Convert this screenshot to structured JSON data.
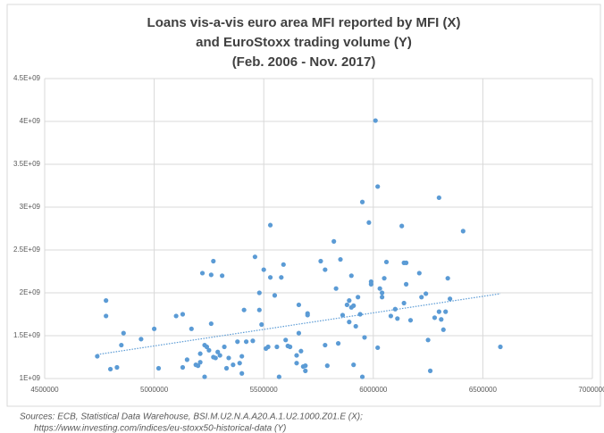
{
  "chart_data": {
    "type": "scatter",
    "title": [
      "Loans vis-a-vis euro area MFI reported by MFI (X)",
      "and EuroStoxx trading volume (Y)",
      "(Feb. 2006 - Nov. 2017)"
    ],
    "notes": [
      "Sources: ECB, Statistical Data Warehouse, BSI.M.U2.N.A.A20.A.1.U2.1000.Z01.E (X);",
      "https://www.investing.com/indices/eu-stoxx50-historical-data (Y)"
    ],
    "color": "#5b9bd5",
    "grid": true,
    "xlim": [
      4500000,
      7000000
    ],
    "xticks": [
      4500000,
      5000000,
      5500000,
      6000000,
      6500000,
      7000000
    ],
    "ylim": [
      1000000000,
      4500000000
    ],
    "yticks": [
      {
        "value": 1000000000,
        "label": "1E+09"
      },
      {
        "value": 1500000000,
        "label": "1.5E+09"
      },
      {
        "value": 2000000000,
        "label": "2E+09"
      },
      {
        "value": 2500000000,
        "label": "2.5E+09"
      },
      {
        "value": 3000000000,
        "label": "3E+09"
      },
      {
        "value": 3500000000,
        "label": "3.5E+09"
      },
      {
        "value": 4000000000,
        "label": "4E+09"
      },
      {
        "value": 4500000000,
        "label": "4.5E+09"
      }
    ],
    "trendline": {
      "x": [
        4740000,
        6580000
      ],
      "values": [
        1280000000,
        1990000000
      ]
    },
    "x": [
      4740000,
      4780000,
      4780000,
      4800000,
      4830000,
      4850000,
      4860000,
      4940000,
      5000000,
      5020000,
      5100000,
      5130000,
      5130000,
      5150000,
      5170000,
      5190000,
      5200000,
      5210000,
      5210000,
      5220000,
      5230000,
      5240000,
      5230000,
      5250000,
      5260000,
      5260000,
      5270000,
      5270000,
      5280000,
      5290000,
      5300000,
      5310000,
      5320000,
      5330000,
      5340000,
      5360000,
      5380000,
      5390000,
      5400000,
      5400000,
      5410000,
      5420000,
      5450000,
      5460000,
      5480000,
      5480000,
      5490000,
      5500000,
      5510000,
      5520000,
      5530000,
      5530000,
      5550000,
      5560000,
      5570000,
      5580000,
      5590000,
      5600000,
      5610000,
      5620000,
      5650000,
      5650000,
      5660000,
      5660000,
      5670000,
      5680000,
      5690000,
      5700000,
      5700000,
      5690000,
      5760000,
      5780000,
      5780000,
      5790000,
      5820000,
      5830000,
      5840000,
      5850000,
      5860000,
      5880000,
      5890000,
      5890000,
      5900000,
      5900000,
      5910000,
      5910000,
      5920000,
      5930000,
      5940000,
      5950000,
      5960000,
      5950000,
      5980000,
      5990000,
      5990000,
      6010000,
      6020000,
      6020000,
      6030000,
      6040000,
      6040000,
      6050000,
      6060000,
      6080000,
      6100000,
      6110000,
      6130000,
      6140000,
      6140000,
      6150000,
      6150000,
      6170000,
      6210000,
      6220000,
      6240000,
      6250000,
      6260000,
      6280000,
      6300000,
      6300000,
      6310000,
      6320000,
      6330000,
      6340000,
      6350000,
      6410000,
      6580000
    ],
    "values": [
      1260000000,
      1910000000,
      1730000000,
      1110000000,
      1130000000,
      1390000000,
      1530000000,
      1460000000,
      1580000000,
      1120000000,
      1730000000,
      1750000000,
      1130000000,
      1220000000,
      1580000000,
      1160000000,
      1150000000,
      1290000000,
      1190000000,
      2230000000,
      1390000000,
      1370000000,
      1020000000,
      1330000000,
      1640000000,
      2210000000,
      2370000000,
      1250000000,
      1240000000,
      1310000000,
      1270000000,
      2200000000,
      1370000000,
      1120000000,
      1240000000,
      1160000000,
      1430000000,
      1180000000,
      1060000000,
      1260000000,
      1800000000,
      1430000000,
      1440000000,
      2420000000,
      2000000000,
      1800000000,
      1630000000,
      2270000000,
      1350000000,
      1370000000,
      2790000000,
      2180000000,
      1970000000,
      1370000000,
      1020000000,
      2180000000,
      2330000000,
      1450000000,
      1380000000,
      1370000000,
      1180000000,
      1270000000,
      1860000000,
      1530000000,
      1320000000,
      1140000000,
      1150000000,
      1760000000,
      1740000000,
      1090000000,
      2370000000,
      2270000000,
      1390000000,
      1150000000,
      2600000000,
      2050000000,
      1410000000,
      2390000000,
      1740000000,
      1860000000,
      1910000000,
      1660000000,
      2200000000,
      1830000000,
      1160000000,
      1850000000,
      1610000000,
      1950000000,
      1750000000,
      3060000000,
      1480000000,
      1020000000,
      2820000000,
      2130000000,
      2100000000,
      4010000000,
      3240000000,
      1360000000,
      2050000000,
      2000000000,
      1950000000,
      2170000000,
      2360000000,
      1730000000,
      1810000000,
      1700000000,
      2780000000,
      2350000000,
      1880000000,
      2350000000,
      2100000000,
      1680000000,
      2230000000,
      1950000000,
      1990000000,
      1450000000,
      1090000000,
      1710000000,
      3110000000,
      1780000000,
      1690000000,
      1570000000,
      1780000000,
      2170000000,
      1930000000,
      2720000000,
      1370000000
    ]
  }
}
